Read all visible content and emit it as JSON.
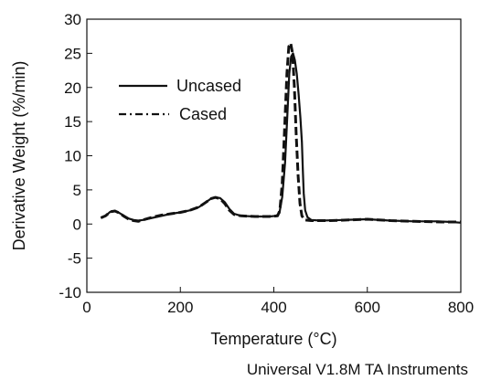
{
  "chart_data": {
    "type": "line",
    "title": "",
    "xlabel": "Temperature (°C)",
    "ylabel": "Derivative Weight (%/min)",
    "xlim": [
      0,
      800
    ],
    "ylim": [
      -10,
      30
    ],
    "x_ticks": [
      0,
      200,
      400,
      600,
      800
    ],
    "y_ticks": [
      -10,
      -5,
      0,
      5,
      10,
      15,
      20,
      25,
      30
    ],
    "grid": false,
    "legend_position": "upper-left",
    "footer": "Universal V1.8M TA Instruments",
    "series": [
      {
        "name": "Uncased",
        "style": "solid",
        "color": "#111111",
        "points": [
          [
            30,
            0.9
          ],
          [
            40,
            1.2
          ],
          [
            50,
            1.8
          ],
          [
            60,
            1.9
          ],
          [
            70,
            1.6
          ],
          [
            80,
            1.2
          ],
          [
            90,
            0.8
          ],
          [
            100,
            0.6
          ],
          [
            110,
            0.5
          ],
          [
            120,
            0.6
          ],
          [
            140,
            0.9
          ],
          [
            160,
            1.2
          ],
          [
            180,
            1.5
          ],
          [
            200,
            1.7
          ],
          [
            220,
            2.0
          ],
          [
            240,
            2.5
          ],
          [
            255,
            3.2
          ],
          [
            265,
            3.7
          ],
          [
            275,
            3.9
          ],
          [
            285,
            3.8
          ],
          [
            295,
            3.2
          ],
          [
            305,
            2.2
          ],
          [
            315,
            1.5
          ],
          [
            330,
            1.2
          ],
          [
            360,
            1.1
          ],
          [
            390,
            1.1
          ],
          [
            405,
            1.2
          ],
          [
            412,
            1.6
          ],
          [
            418,
            4.0
          ],
          [
            424,
            9.0
          ],
          [
            429,
            16.0
          ],
          [
            433,
            22.0
          ],
          [
            437,
            24.5
          ],
          [
            441,
            25.0
          ],
          [
            445,
            24.0
          ],
          [
            449,
            22.0
          ],
          [
            453,
            19.0
          ],
          [
            457,
            15.5
          ],
          [
            460,
            12.0
          ],
          [
            462,
            8.0
          ],
          [
            464,
            4.5
          ],
          [
            467,
            2.0
          ],
          [
            472,
            1.0
          ],
          [
            480,
            0.6
          ],
          [
            500,
            0.5
          ],
          [
            550,
            0.6
          ],
          [
            600,
            0.7
          ],
          [
            650,
            0.5
          ],
          [
            700,
            0.4
          ],
          [
            750,
            0.4
          ],
          [
            780,
            0.3
          ],
          [
            800,
            0.2
          ]
        ]
      },
      {
        "name": "Cased",
        "style": "dashed",
        "color": "#111111",
        "points": [
          [
            30,
            0.9
          ],
          [
            40,
            1.2
          ],
          [
            50,
            1.8
          ],
          [
            60,
            1.9
          ],
          [
            70,
            1.6
          ],
          [
            80,
            1.1
          ],
          [
            90,
            0.7
          ],
          [
            100,
            0.5
          ],
          [
            110,
            0.4
          ],
          [
            120,
            0.6
          ],
          [
            140,
            1.0
          ],
          [
            160,
            1.3
          ],
          [
            180,
            1.5
          ],
          [
            200,
            1.7
          ],
          [
            220,
            2.0
          ],
          [
            240,
            2.5
          ],
          [
            255,
            3.2
          ],
          [
            265,
            3.7
          ],
          [
            275,
            3.9
          ],
          [
            285,
            3.7
          ],
          [
            295,
            3.0
          ],
          [
            305,
            2.0
          ],
          [
            315,
            1.4
          ],
          [
            330,
            1.2
          ],
          [
            360,
            1.1
          ],
          [
            390,
            1.1
          ],
          [
            408,
            1.2
          ],
          [
            413,
            2.0
          ],
          [
            418,
            6.0
          ],
          [
            423,
            14.0
          ],
          [
            428,
            22.0
          ],
          [
            432,
            26.0
          ],
          [
            436,
            26.5
          ],
          [
            440,
            25.0
          ],
          [
            444,
            20.0
          ],
          [
            448,
            13.0
          ],
          [
            452,
            7.0
          ],
          [
            456,
            3.0
          ],
          [
            460,
            1.2
          ],
          [
            466,
            0.6
          ],
          [
            480,
            0.5
          ],
          [
            520,
            0.5
          ],
          [
            560,
            0.6
          ],
          [
            600,
            0.7
          ],
          [
            650,
            0.5
          ],
          [
            700,
            0.4
          ],
          [
            760,
            0.3
          ],
          [
            800,
            0.3
          ]
        ]
      }
    ]
  }
}
